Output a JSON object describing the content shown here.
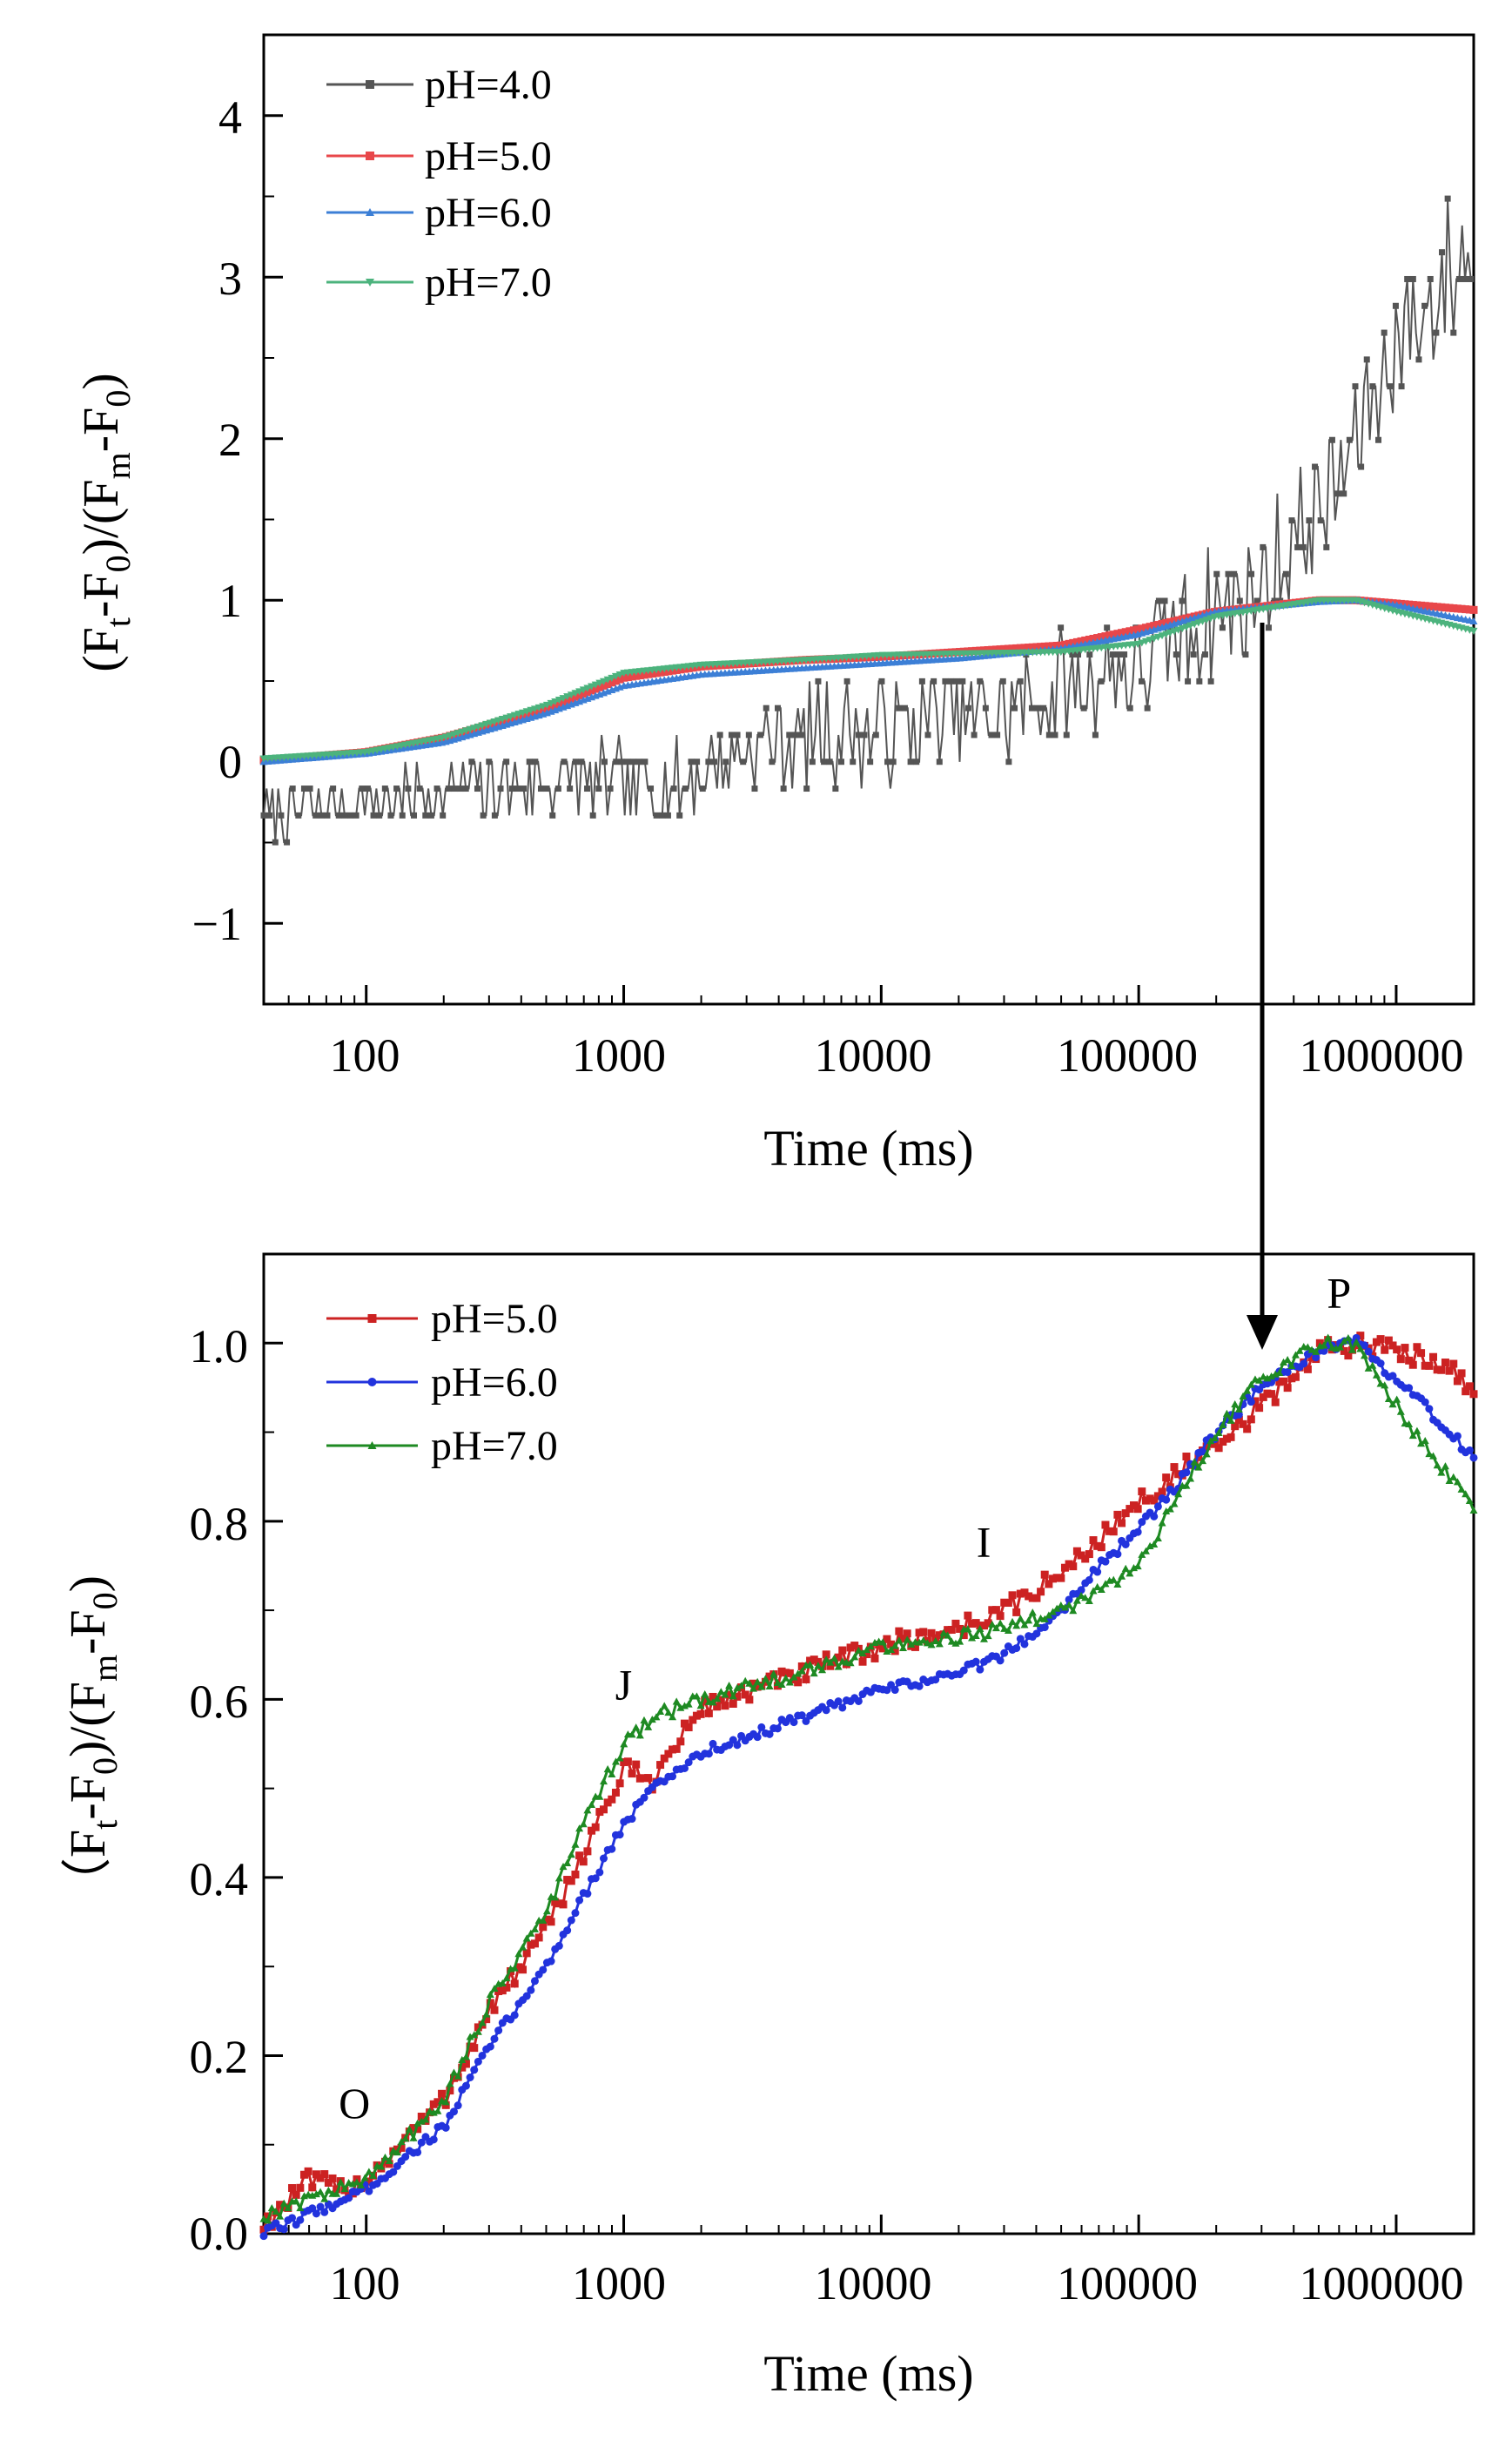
{
  "chart_data": [
    {
      "id": "top",
      "type": "line",
      "xscale": "log",
      "xlim": [
        40,
        2000000
      ],
      "ylim": [
        -1.5,
        4.5
      ],
      "xticks": [
        100,
        1000,
        10000,
        100000,
        1000000
      ],
      "xtick_labels": [
        "100",
        "1000",
        "10000",
        "100000",
        "1000000"
      ],
      "yticks": [
        -1,
        0,
        1,
        2,
        3,
        4
      ],
      "ytick_labels": [
        "−1",
        "0",
        "1",
        "2",
        "3",
        "4"
      ],
      "xlabel": "Time (ms)",
      "ylabel": {
        "p1": "(F",
        "s1": "t",
        "p2": "-F",
        "s2": "0",
        "p3": ")/(F",
        "s3": "m",
        "p4": "-F",
        "s4": "0",
        "p5": ")"
      },
      "legend_position": "top-left",
      "series": [
        {
          "name": "pH=4.0",
          "color": "#555555",
          "marker": "square",
          "noisy": true,
          "jitter": 0.25,
          "x": [
            40,
            100,
            200,
            600,
            1000,
            1500,
            2500,
            4000,
            10000,
            30000,
            60000,
            100000,
            150000,
            300000,
            600000,
            1000000,
            2000000
          ],
          "y": [
            -0.3,
            -0.25,
            -0.2,
            -0.1,
            -0.15,
            -0.15,
            0.0,
            0.15,
            0.2,
            0.3,
            0.5,
            0.6,
            0.8,
            1.1,
            1.7,
            2.6,
            3.2
          ]
        },
        {
          "name": "pH=5.0",
          "color": "#e8474a",
          "marker": "square",
          "x": [
            40,
            100,
            200,
            500,
            1000,
            2000,
            5000,
            10000,
            20000,
            50000,
            100000,
            200000,
            500000,
            700000,
            1000000,
            2000000
          ],
          "y": [
            0.01,
            0.06,
            0.15,
            0.33,
            0.52,
            0.59,
            0.63,
            0.65,
            0.68,
            0.72,
            0.82,
            0.93,
            1.0,
            1.0,
            0.98,
            0.94
          ]
        },
        {
          "name": "pH=6.0",
          "color": "#3c7fd6",
          "marker": "triangle",
          "x": [
            40,
            100,
            200,
            500,
            1000,
            2000,
            5000,
            10000,
            20000,
            50000,
            100000,
            200000,
            500000,
            700000,
            1000000,
            2000000
          ],
          "y": [
            0.0,
            0.05,
            0.12,
            0.3,
            0.47,
            0.54,
            0.58,
            0.61,
            0.64,
            0.7,
            0.79,
            0.93,
            0.99,
            1.0,
            0.97,
            0.87
          ]
        },
        {
          "name": "pH=7.0",
          "color": "#4cb37d",
          "marker": "triangle-down",
          "x": [
            40,
            100,
            200,
            500,
            1000,
            2000,
            5000,
            10000,
            20000,
            50000,
            100000,
            200000,
            500000,
            700000,
            1000000,
            2000000
          ],
          "y": [
            0.02,
            0.06,
            0.15,
            0.35,
            0.55,
            0.6,
            0.63,
            0.66,
            0.67,
            0.68,
            0.73,
            0.9,
            1.0,
            1.0,
            0.93,
            0.81
          ]
        }
      ]
    },
    {
      "id": "bottom",
      "type": "line",
      "xscale": "log",
      "xlim": [
        40,
        2000000
      ],
      "ylim": [
        0.0,
        1.1
      ],
      "xticks": [
        100,
        1000,
        10000,
        100000,
        1000000
      ],
      "xtick_labels": [
        "100",
        "1000",
        "10000",
        "100000",
        "1000000"
      ],
      "yticks": [
        0.0,
        0.2,
        0.4,
        0.6,
        0.8,
        1.0
      ],
      "ytick_labels": [
        "0.0",
        "0.2",
        "0.4",
        "0.6",
        "0.8",
        "1.0"
      ],
      "xlabel": "Time (ms)",
      "ylabel": {
        "p1": "（F",
        "s1": "t",
        "p2": "-F",
        "s2": "0",
        "p3": ")/(F",
        "s3": "m",
        "p4": "-F",
        "s4": "0",
        "p5": ")"
      },
      "legend_position": "top-left",
      "annotations": [
        {
          "text": "O",
          "x": 90,
          "y": 0.13
        },
        {
          "text": "J",
          "x": 1000,
          "y": 0.6
        },
        {
          "text": "I",
          "x": 25000,
          "y": 0.76
        },
        {
          "text": "P",
          "x": 600000,
          "y": 1.04
        }
      ],
      "series": [
        {
          "name": "pH=5.0",
          "color": "#cc2222",
          "marker": "square",
          "jitter": 0.012,
          "x": [
            40,
            60,
            80,
            100,
            200,
            300,
            500,
            700,
            1000,
            1300,
            2000,
            5000,
            10000,
            20000,
            30000,
            50000,
            70000,
            100000,
            150000,
            200000,
            300000,
            500000,
            700000,
            1000000,
            1500000,
            2000000
          ],
          "y": [
            0.01,
            0.06,
            0.05,
            0.06,
            0.15,
            0.25,
            0.34,
            0.43,
            0.52,
            0.51,
            0.59,
            0.63,
            0.66,
            0.68,
            0.7,
            0.74,
            0.78,
            0.82,
            0.86,
            0.88,
            0.93,
            0.99,
            1.0,
            0.99,
            0.98,
            0.95
          ]
        },
        {
          "name": "pH=6.0",
          "color": "#2233dd",
          "marker": "circle",
          "jitter": 0.006,
          "x": [
            40,
            100,
            200,
            300,
            500,
            700,
            1000,
            1300,
            2000,
            5000,
            10000,
            20000,
            30000,
            50000,
            70000,
            100000,
            150000,
            200000,
            300000,
            500000,
            700000,
            1000000,
            1500000,
            2000000
          ],
          "y": [
            0.0,
            0.05,
            0.12,
            0.21,
            0.3,
            0.38,
            0.46,
            0.5,
            0.54,
            0.58,
            0.61,
            0.63,
            0.65,
            0.7,
            0.75,
            0.79,
            0.85,
            0.9,
            0.95,
            0.99,
            1.0,
            0.96,
            0.91,
            0.87
          ]
        },
        {
          "name": "pH=7.0",
          "color": "#1e8a22",
          "marker": "triangle",
          "jitter": 0.008,
          "x": [
            40,
            60,
            100,
            200,
            300,
            500,
            700,
            1000,
            1300,
            2000,
            5000,
            10000,
            20000,
            30000,
            50000,
            70000,
            100000,
            150000,
            200000,
            300000,
            500000,
            700000,
            1000000,
            1500000,
            2000000
          ],
          "y": [
            0.02,
            0.04,
            0.06,
            0.15,
            0.26,
            0.36,
            0.46,
            0.55,
            0.58,
            0.6,
            0.63,
            0.66,
            0.67,
            0.68,
            0.7,
            0.72,
            0.75,
            0.84,
            0.9,
            0.96,
            1.0,
            1.0,
            0.93,
            0.86,
            0.82
          ]
        }
      ]
    }
  ]
}
